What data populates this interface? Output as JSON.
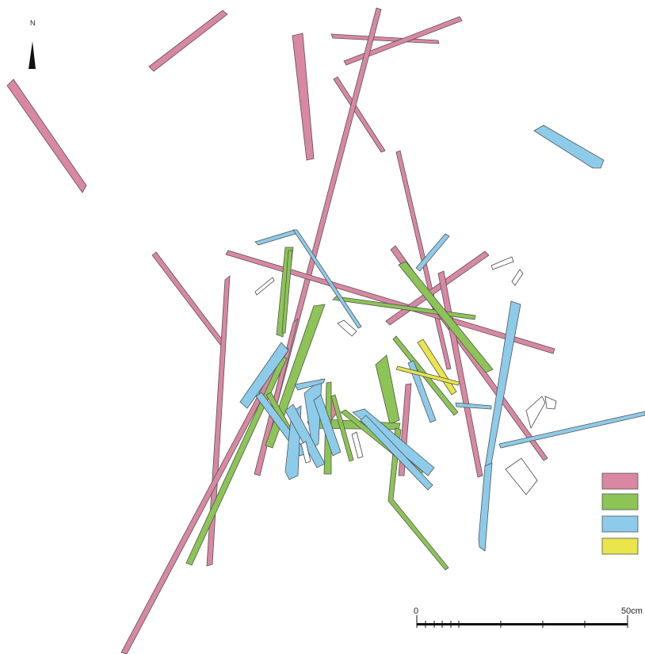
{
  "north_arrow": {
    "label": "N",
    "icon": "north-arrow-icon"
  },
  "scale_bar": {
    "start_label": "0",
    "end_label": "50cm"
  },
  "legend": {
    "swatches": [
      {
        "color": "#d987a2"
      },
      {
        "color": "#8cc455"
      },
      {
        "color": "#8dcbea"
      },
      {
        "color": "#e9e54a"
      }
    ]
  },
  "colors": {
    "pink": "#d987a2",
    "green": "#8cc455",
    "blue": "#8dcbea",
    "yellow": "#e9e54a",
    "outline": "#555555"
  }
}
